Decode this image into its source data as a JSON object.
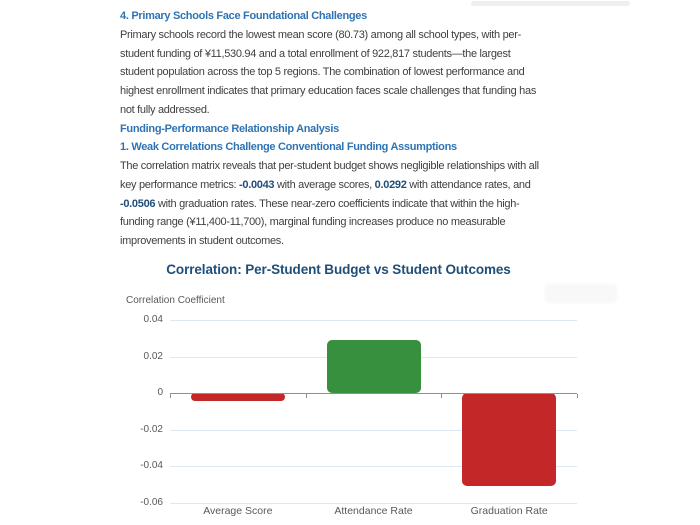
{
  "document": {
    "lines": [
      {
        "type": "heading",
        "segments": [
          {
            "text": "4. Primary Schools Face Foundational Challenges",
            "bold": false
          }
        ]
      },
      {
        "type": "body",
        "segments": [
          {
            "text": "Primary schools record the lowest mean score (80.73) among all school types, with per-",
            "bold": false
          }
        ]
      },
      {
        "type": "body",
        "segments": [
          {
            "text": "student funding of ¥11,530.94 and a total enrollment of 922,817 students—the largest",
            "bold": false
          }
        ]
      },
      {
        "type": "body",
        "segments": [
          {
            "text": "student population across the top 5 regions. The combination of lowest performance and",
            "bold": false
          }
        ]
      },
      {
        "type": "body",
        "segments": [
          {
            "text": "highest enrollment indicates that primary education faces scale challenges that funding has",
            "bold": false
          }
        ]
      },
      {
        "type": "body",
        "segments": [
          {
            "text": "not fully addressed.",
            "bold": false
          }
        ]
      },
      {
        "type": "heading",
        "segments": [
          {
            "text": "Funding-Performance Relationship Analysis",
            "bold": false
          }
        ]
      },
      {
        "type": "heading",
        "segments": [
          {
            "text": "1. Weak Correlations Challenge Conventional Funding Assumptions",
            "bold": false
          }
        ]
      },
      {
        "type": "body",
        "segments": [
          {
            "text": "The correlation matrix reveals that per-student budget shows negligible relationships with all",
            "bold": false
          }
        ]
      },
      {
        "type": "body",
        "segments": [
          {
            "text": "key performance metrics: ",
            "bold": false
          },
          {
            "text": "-0.0043",
            "bold": true
          },
          {
            "text": " with average scores, ",
            "bold": false
          },
          {
            "text": "0.0292",
            "bold": true
          },
          {
            "text": " with attendance rates, and",
            "bold": false
          }
        ]
      },
      {
        "type": "body",
        "segments": [
          {
            "text": "-0.0506",
            "bold": true
          },
          {
            "text": " with graduation rates. These near-zero coefficients indicate that within the high-",
            "bold": false
          }
        ]
      },
      {
        "type": "body",
        "segments": [
          {
            "text": "funding range (¥11,400-11,700), marginal funding increases produce no measurable",
            "bold": false
          }
        ]
      },
      {
        "type": "body",
        "segments": [
          {
            "text": "improvements in student outcomes.",
            "bold": false
          }
        ]
      }
    ]
  },
  "chart_data": {
    "type": "bar",
    "title": "Correlation: Per-Student Budget vs Student Outcomes",
    "ylabel": "Correlation Coefficient",
    "xlabel": "",
    "categories": [
      "Average Score",
      "Attendance Rate",
      "Graduation Rate"
    ],
    "values": [
      -0.0043,
      0.0292,
      -0.0506
    ],
    "yticks": [
      {
        "label": "0.04",
        "value": 0.04
      },
      {
        "label": "0.02",
        "value": 0.02
      },
      {
        "label": "0",
        "value": 0
      },
      {
        "label": "-0.02",
        "value": -0.02
      },
      {
        "label": "-0.04",
        "value": -0.04
      },
      {
        "label": "-0.06",
        "value": -0.06
      }
    ],
    "ylim": [
      -0.06,
      0.04
    ],
    "grid": true,
    "legend": false,
    "colors": {
      "positive": "#37903e",
      "negative": "#c32727",
      "title": "#1f4e79",
      "heading_blue": "#2e74b5",
      "body_text": "#3f3f3f",
      "gridline": "#dde8f4",
      "axis_line": "#8f8f8f",
      "tick_label": "#595959"
    }
  }
}
